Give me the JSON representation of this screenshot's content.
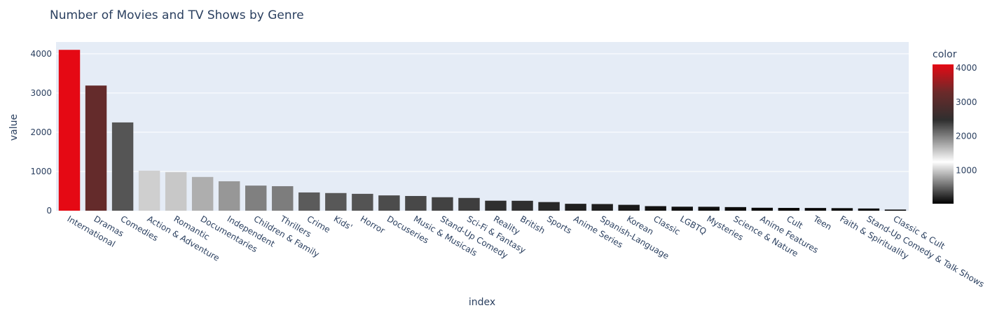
{
  "chart_data": {
    "type": "bar",
    "title": "Number of Movies and TV Shows by Genre",
    "xlabel": "index",
    "ylabel": "value",
    "ylim": [
      0,
      4300
    ],
    "yticks": [
      0,
      1000,
      2000,
      3000,
      4000
    ],
    "grid": true,
    "categories": [
      "International",
      "Dramas",
      "Comedies",
      "Action & Adventure",
      "Romantic",
      "Documentaries",
      "Independent",
      "Children & Family",
      "Thrillers",
      "Crime",
      "Kids'",
      "Horror",
      "Docuseries",
      "Music & Musicals",
      "Stand-Up Comedy",
      "Sci-Fi & Fantasy",
      "Reality",
      "British",
      "Sports",
      "Anime Series",
      "Spanish-Language",
      "Korean",
      "Classic",
      "LGBTQ",
      "Mysteries",
      "Science & Nature",
      "Anime Features",
      "Cult",
      "Teen",
      "Faith & Spirituality",
      "Stand-Up Comedy & Talk Shows",
      "Classic & Cult"
    ],
    "values": [
      4100,
      3190,
      2250,
      1020,
      985,
      860,
      750,
      640,
      625,
      465,
      450,
      430,
      390,
      375,
      343,
      325,
      255,
      253,
      220,
      176,
      170,
      150,
      116,
      102,
      100,
      92,
      75,
      71,
      69,
      65,
      56,
      28
    ],
    "colorbar": {
      "title": "color",
      "ticks": [
        1000,
        2000,
        3000,
        4000
      ],
      "range": [
        28,
        4100
      ],
      "colorscale": [
        [
          0,
          "#000000"
        ],
        [
          0.3,
          "#ffffff"
        ],
        [
          0.6,
          "#2f2f2f"
        ],
        [
          0.8,
          "#6b2a2a"
        ],
        [
          1,
          "#e50914"
        ]
      ]
    }
  }
}
